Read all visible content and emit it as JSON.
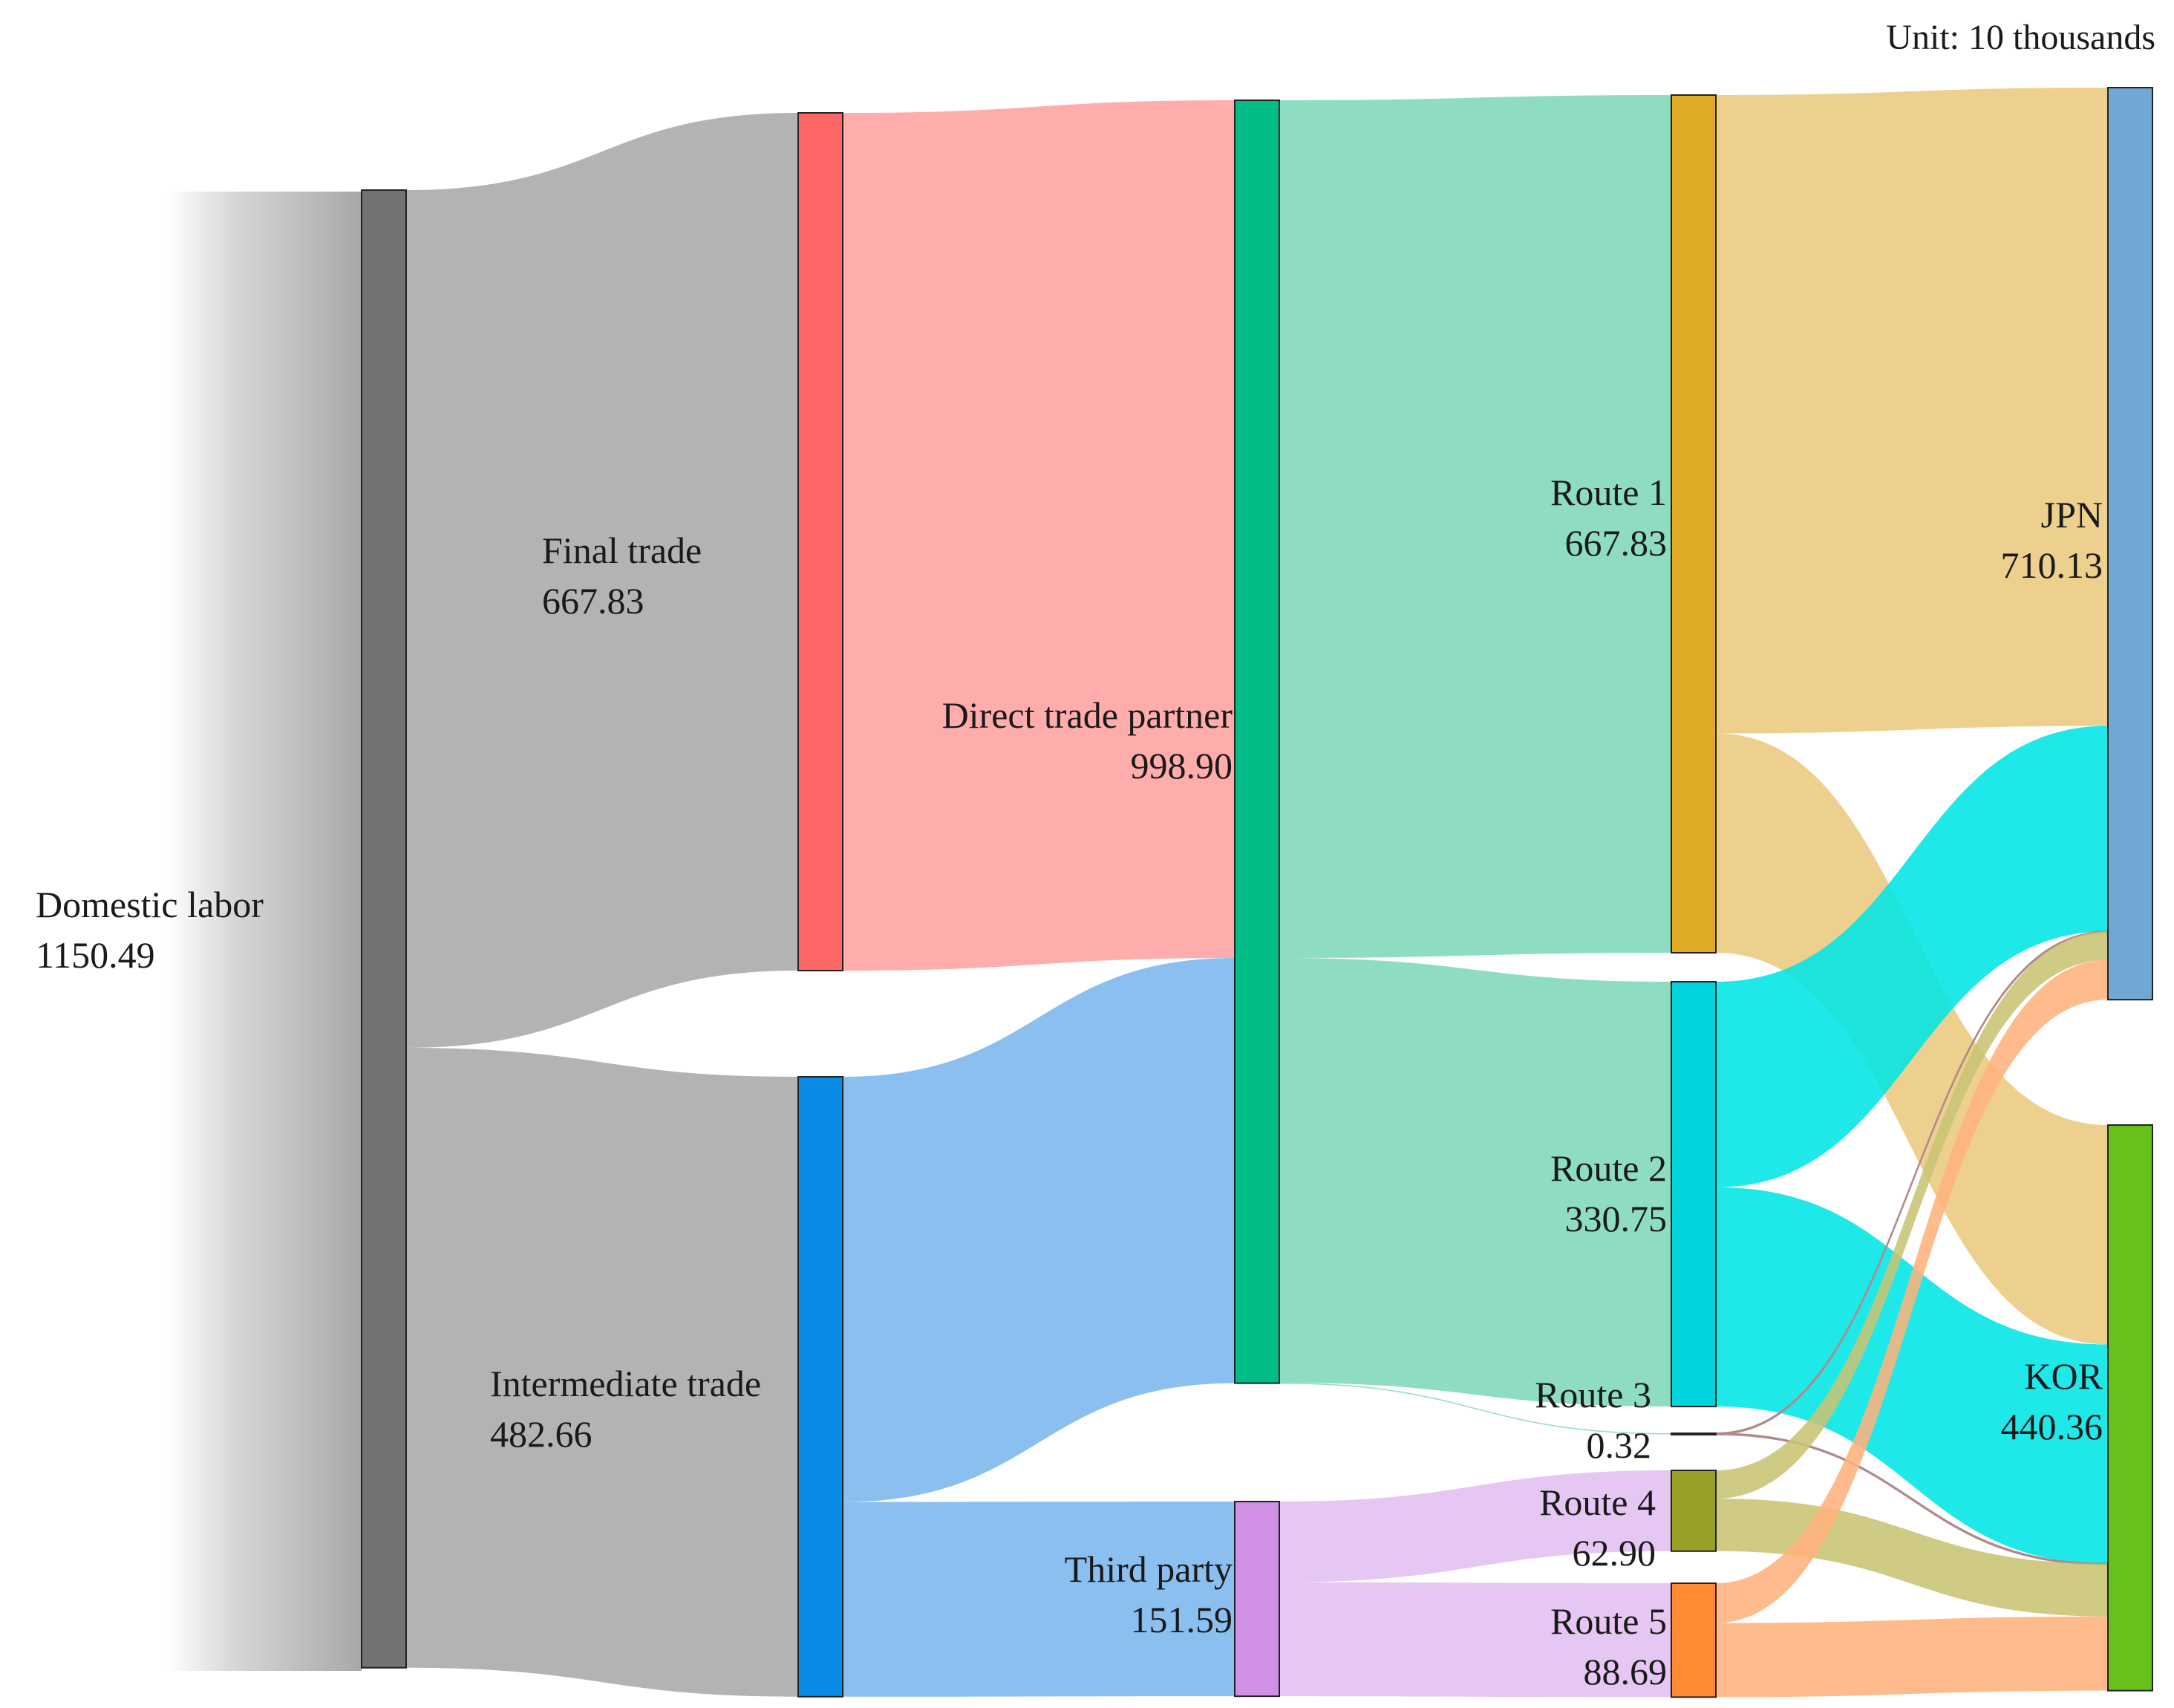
{
  "chart_data": {
    "type": "sankey",
    "unit_label": "Unit: 10 thousands",
    "nodes": [
      {
        "id": "domestic",
        "name": "Domestic labor",
        "value": "1150.49",
        "color": "#737373"
      },
      {
        "id": "final",
        "name": "Final trade",
        "value": "667.83",
        "color": "#ff6666"
      },
      {
        "id": "inter",
        "name": "Intermediate trade",
        "value": "482.66",
        "color": "#0a8ce6"
      },
      {
        "id": "direct",
        "name": "Direct trade partner",
        "value": "998.90",
        "color": "#00bd87"
      },
      {
        "id": "third",
        "name": "Third party",
        "value": "151.59",
        "color": "#cf90e6"
      },
      {
        "id": "r1",
        "name": "Route 1",
        "value": "667.83",
        "color": "#e0ac26"
      },
      {
        "id": "r2",
        "name": "Route 2",
        "value": "330.75",
        "color": "#00d3dc"
      },
      {
        "id": "r3",
        "name": "Route 3",
        "value": "0.32",
        "color": "#7a7a7a"
      },
      {
        "id": "r4",
        "name": "Route 4",
        "value": "62.90",
        "color": "#98a126"
      },
      {
        "id": "r5",
        "name": "Route 5",
        "value": "88.69",
        "color": "#ff8a33"
      },
      {
        "id": "jpn",
        "name": "JPN",
        "value": "710.13",
        "color": "#6fa8d4"
      },
      {
        "id": "kor",
        "name": "KOR",
        "value": "440.36",
        "color": "#66c21b"
      }
    ],
    "links": [
      {
        "source": "domestic",
        "target": "final",
        "value": 667.83,
        "color": "#a8a8a8"
      },
      {
        "source": "domestic",
        "target": "inter",
        "value": 482.66,
        "color": "#a8a8a8"
      },
      {
        "source": "final",
        "target": "direct",
        "value": 667.83,
        "color": "#ffa0a2"
      },
      {
        "source": "inter",
        "target": "direct",
        "value": 331.07,
        "color": "#7ab6ee"
      },
      {
        "source": "inter",
        "target": "third",
        "value": 151.59,
        "color": "#7ab6ee"
      },
      {
        "source": "direct",
        "target": "r1",
        "value": 667.83,
        "color": "#7fd8b8"
      },
      {
        "source": "direct",
        "target": "r2",
        "value": 330.75,
        "color": "#7fd8b8"
      },
      {
        "source": "direct",
        "target": "r3",
        "value": 0.32,
        "color": "#7fd8b8"
      },
      {
        "source": "third",
        "target": "r4",
        "value": 62.9,
        "color": "#e2bef0"
      },
      {
        "source": "third",
        "target": "r5",
        "value": 88.69,
        "color": "#e2bef0"
      },
      {
        "source": "r1",
        "target": "jpn",
        "value": 497.0,
        "color": "#ecca7e"
      },
      {
        "source": "r1",
        "target": "kor",
        "value": 170.83,
        "color": "#ecca7e"
      },
      {
        "source": "r2",
        "target": "jpn",
        "value": 160.0,
        "color": "#00e5e6"
      },
      {
        "source": "r2",
        "target": "kor",
        "value": 170.75,
        "color": "#00e5e6"
      },
      {
        "source": "r3",
        "target": "jpn",
        "value": 0.16,
        "color": "#c9a0a0"
      },
      {
        "source": "r3",
        "target": "kor",
        "value": 0.16,
        "color": "#c9a0a0"
      },
      {
        "source": "r4",
        "target": "jpn",
        "value": 22.0,
        "color": "#c8c474"
      },
      {
        "source": "r4",
        "target": "kor",
        "value": 40.9,
        "color": "#c8c474"
      },
      {
        "source": "r5",
        "target": "jpn",
        "value": 30.97,
        "color": "#ffb27c"
      },
      {
        "source": "r5",
        "target": "kor",
        "value": 57.72,
        "color": "#ffb27c"
      }
    ]
  }
}
